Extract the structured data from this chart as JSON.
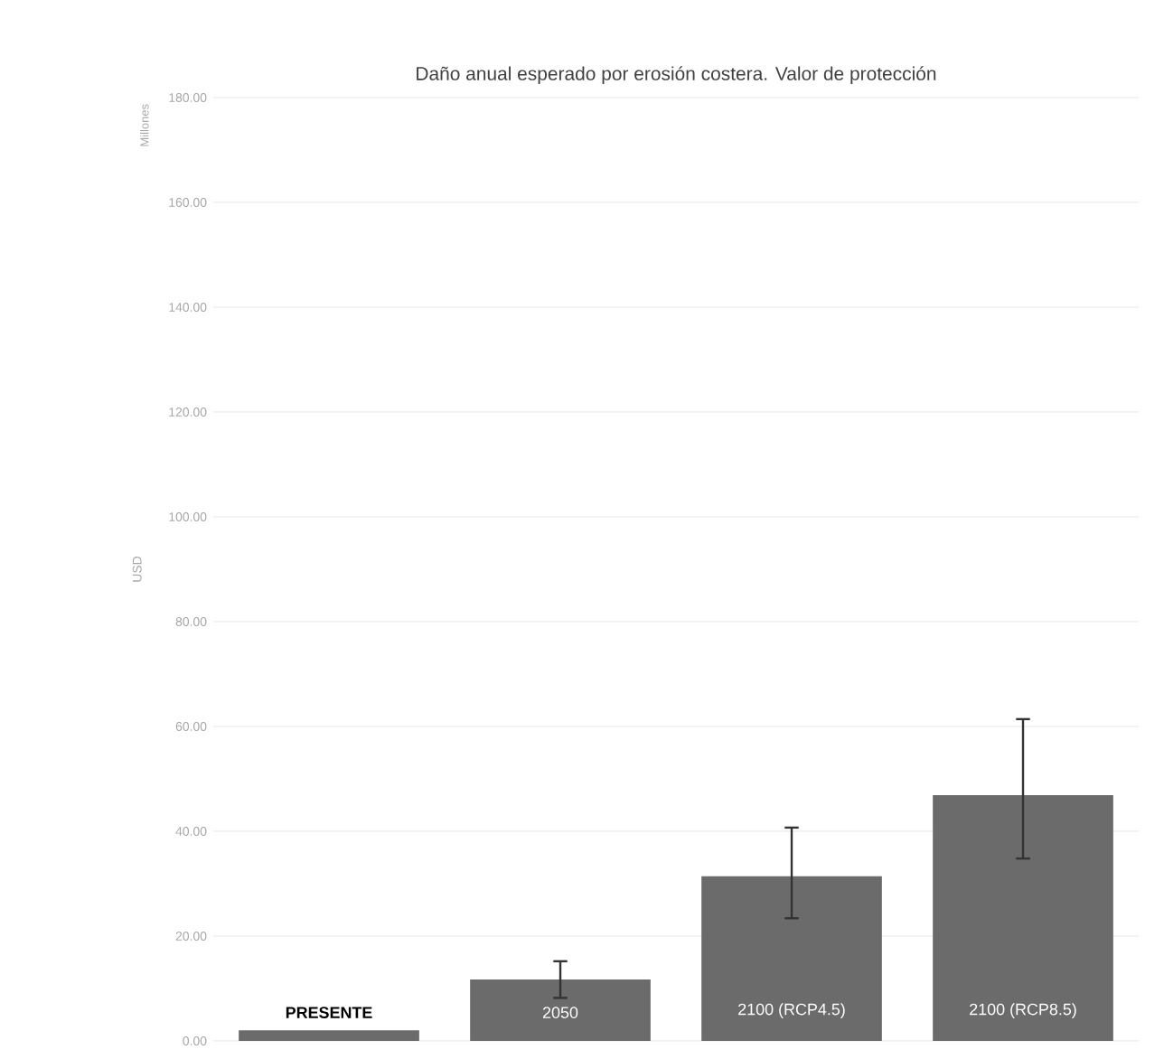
{
  "chart_data": {
    "type": "bar",
    "title": "Daño anual esperado por erosión costera. Valor de protección",
    "ylabel": "USD",
    "annotations": [
      "Millones"
    ],
    "categories": [
      "PRESENTE",
      "2050",
      "2100 (RCP4.5)",
      "2100 (RCP8.5)"
    ],
    "values": [
      2.0,
      11.7,
      31.4,
      46.9
    ],
    "errors": [
      null,
      [
        8.2,
        15.2
      ],
      [
        23.4,
        40.7
      ],
      [
        34.8,
        61.4
      ]
    ],
    "color": "#6b6b6b",
    "ylim": [
      0,
      180
    ],
    "yticks": [
      {
        "value": 0,
        "label": "0.00"
      },
      {
        "value": 20,
        "label": "20.00"
      },
      {
        "value": 40,
        "label": "40.00"
      },
      {
        "value": 60,
        "label": "60.00"
      },
      {
        "value": 80,
        "label": "80.00"
      },
      {
        "value": 100,
        "label": "100.00"
      },
      {
        "value": 120,
        "label": "120.00"
      },
      {
        "value": 140,
        "label": "140.00"
      },
      {
        "value": 160,
        "label": "160.00"
      },
      {
        "value": 180,
        "label": "180.00"
      }
    ],
    "grid": "y"
  }
}
